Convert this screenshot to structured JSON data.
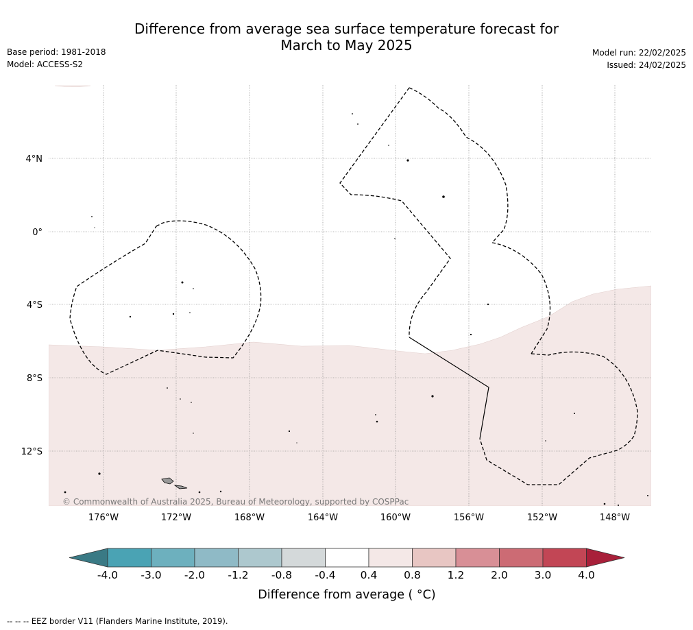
{
  "header": {
    "title_line1": "Difference from average sea surface temperature forecast for",
    "title_line2": "March to May 2025",
    "base_period": "Base period: 1981-2018",
    "model": "Model: ACCESS-S2",
    "model_run": "Model run: 22/02/2025",
    "issued": "Issued: 24/02/2025"
  },
  "map": {
    "lat_labels": [
      "4°N",
      "0°",
      "4°S",
      "8°S",
      "12°S"
    ],
    "lon_labels": [
      "176°W",
      "172°W",
      "168°W",
      "164°W",
      "160°W",
      "156°W",
      "152°W",
      "148°W"
    ],
    "copyright": "© Commonwealth of Australia 2025, Bureau of Meteorology, supported by COSPPac",
    "anomaly_fill_color": "#f4e8e7",
    "land_color": "#999999"
  },
  "colorbar": {
    "tick_labels": [
      "-4.0",
      "-3.0",
      "-2.0",
      "-1.2",
      "-0.8",
      "-0.4",
      "0.4",
      "0.8",
      "1.2",
      "2.0",
      "3.0",
      "4.0"
    ],
    "colors": [
      "#3a7a85",
      "#4aa3b4",
      "#6db0be",
      "#8fbac6",
      "#adc8ce",
      "#d4d9da",
      "#ffffff",
      "#f4e8e7",
      "#e8c6c3",
      "#d88f96",
      "#cc6b74",
      "#c24655",
      "#a8203a"
    ],
    "label": "Difference from average ( °C)"
  },
  "footnote": "--  --  -- EEZ border V11 (Flanders Marine Institute, 2019)."
}
